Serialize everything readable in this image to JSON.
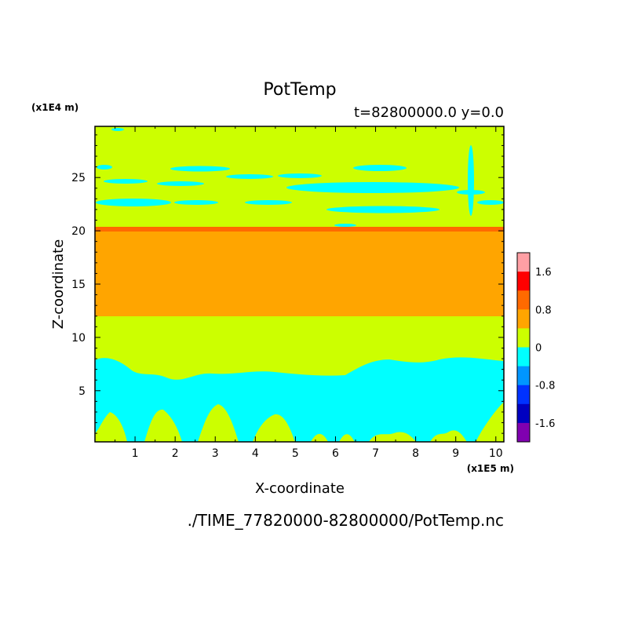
{
  "chart_data": {
    "type": "heatmap",
    "title": "PotTemp",
    "subtitle": "t=82800000.0 y=0.0",
    "xlabel": "X-coordinate",
    "ylabel": "Z-coordinate",
    "x_scale_note": "(x1E5 m)",
    "y_scale_note": "(x1E4 m)",
    "footer": "./TIME_77820000-82800000/PotTemp.nc",
    "xlim": [
      0,
      10.2
    ],
    "ylim": [
      0.2,
      29.8
    ],
    "x_ticks": [
      "1",
      "2",
      "3",
      "4",
      "5",
      "6",
      "7",
      "8",
      "9",
      "10"
    ],
    "y_ticks": [
      "5",
      "10",
      "15",
      "20",
      "25"
    ],
    "colorbar": {
      "labels": [
        "1.6",
        "0.8",
        "0",
        "-0.8",
        "-1.6"
      ],
      "colors": [
        "#ff9fa4",
        "#ff0000",
        "#ff6a00",
        "#ffa500",
        "#ccff00",
        "#00ffff",
        "#0096ff",
        "#0032ff",
        "#0000c0",
        "#8000b0"
      ]
    },
    "layers": {
      "upper_background": "#ccff00",
      "upper_patches": "#00ffff",
      "interface_band": "#ff6a00",
      "warm_layer": "#ffa500",
      "lower_background": "#ccff00",
      "lower_patches": "#00ffff"
    }
  }
}
